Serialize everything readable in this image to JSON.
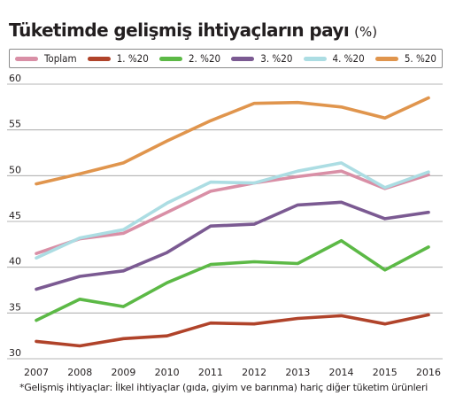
{
  "title": "Tüketimde gelişmiş ihtiyaçların payı",
  "unit": "(%)",
  "footnote": "*Gelişmiş ihtiyaçlar: İlkel ihtiyaçlar (gıda, giyim ve barınma) hariç diğer tüketim ürünleri",
  "chart_data": {
    "type": "line",
    "title": "Tüketimde gelişmiş ihtiyaçların payı",
    "subtitle": "(%)",
    "xlabel": "",
    "ylabel": "",
    "x": [
      "2007",
      "2008",
      "2009",
      "2010",
      "2011",
      "2012",
      "2013",
      "2014",
      "2015",
      "2016"
    ],
    "ylim": [
      30,
      60
    ],
    "yticks": [
      30,
      35,
      40,
      45,
      50,
      55,
      60
    ],
    "grid": true,
    "legend_position": "top",
    "series": [
      {
        "name": "Toplam",
        "color": "#d98fa6",
        "values": [
          41.5,
          43.1,
          43.7,
          46.0,
          48.3,
          49.2,
          49.9,
          50.5,
          48.6,
          50.1
        ]
      },
      {
        "name": "1. %20",
        "color": "#b0432a",
        "values": [
          31.9,
          31.4,
          32.2,
          32.5,
          33.9,
          33.8,
          34.4,
          34.7,
          33.8,
          34.8
        ]
      },
      {
        "name": "2. %20",
        "color": "#5cb946",
        "values": [
          34.2,
          36.5,
          35.7,
          38.3,
          40.3,
          40.6,
          40.4,
          42.9,
          39.7,
          42.2
        ]
      },
      {
        "name": "3. %20",
        "color": "#7b5a92",
        "values": [
          37.6,
          39.0,
          39.6,
          41.6,
          44.5,
          44.7,
          46.8,
          47.1,
          45.3,
          46.0
        ]
      },
      {
        "name": "4. %20",
        "color": "#acdde3",
        "values": [
          41.0,
          43.2,
          44.1,
          47.0,
          49.3,
          49.2,
          50.5,
          51.4,
          48.7,
          50.4
        ]
      },
      {
        "name": "5. %20",
        "color": "#e0954d",
        "values": [
          49.1,
          50.2,
          51.4,
          53.8,
          56.0,
          57.9,
          58.0,
          57.5,
          56.3,
          58.5
        ]
      }
    ]
  }
}
